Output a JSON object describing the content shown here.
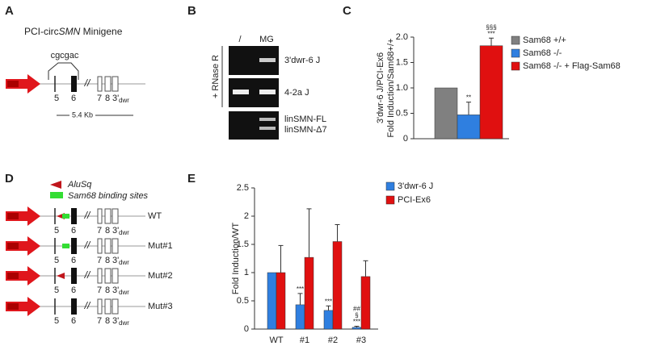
{
  "panel_labels": [
    "A",
    "B",
    "C",
    "D",
    "E"
  ],
  "minigene": {
    "title_pre": "PCI-circ",
    "title_italic": "SMN",
    "title_post": " Minigene",
    "motif": "cgcgac",
    "exons": [
      "5",
      "6",
      "7",
      "8"
    ],
    "dwr_prime": "3'",
    "dwr": "dwr",
    "length": "5.4 Kb"
  },
  "gel": {
    "side_label": "+ RNase R",
    "lanes": [
      "/",
      "MG"
    ],
    "bands": [
      "3'dwr-6 J",
      "4-2a J",
      "linSMN-FL",
      "linSMN-Δ7"
    ]
  },
  "mutants": {
    "legend": [
      "AluSq",
      "Sam68 binding sites"
    ],
    "rows": [
      "WT",
      "Mut#1",
      "Mut#2",
      "Mut#3"
    ]
  },
  "chart_data": [
    {
      "type": "bar",
      "ylabel": [
        "3'dwr-6 J/PCI-Ex6",
        "Fold Induction/Sam68+/+"
      ],
      "categories": [
        null
      ],
      "series": [
        {
          "name": "Sam68 +/+",
          "color": "#808080",
          "values": [
            1.0
          ]
        },
        {
          "name": "Sam68 -/-",
          "color": "#2f7fe0",
          "values": [
            0.47
          ],
          "errors": [
            0.25
          ],
          "significance": [
            [
              "**"
            ]
          ]
        },
        {
          "name": "Sam68 -/- + Flag-Sam68",
          "color": "#e01010",
          "values": [
            1.83
          ],
          "errors": [
            0.15
          ],
          "significance": [
            [
              "***",
              "§§§"
            ]
          ]
        }
      ],
      "ylim": [
        0,
        2
      ],
      "yticks": [
        0,
        0.5,
        {
          "value": 1,
          "label": "1.0"
        },
        1.5,
        {
          "value": 2,
          "label": "2.0"
        }
      ]
    },
    {
      "type": "bar",
      "ylabel": [
        "Fold Induction/WT"
      ],
      "categories": [
        "WT",
        "#1",
        "#2",
        "#3"
      ],
      "series": [
        {
          "name": "3'dwr-6 J",
          "color": "#2f7fe0",
          "values": [
            1.0,
            0.43,
            0.33,
            0.03
          ],
          "errors": [
            null,
            0.2,
            0.08,
            0.02
          ],
          "significance": [
            [],
            [
              "***"
            ],
            [
              "***"
            ],
            [
              "***",
              "§",
              "##"
            ]
          ]
        },
        {
          "name": "PCI-Ex6",
          "color": "#e01010",
          "values": [
            1.0,
            1.27,
            1.55,
            0.93
          ],
          "errors": [
            0.48,
            0.86,
            0.3,
            0.28
          ]
        }
      ],
      "ylim": [
        0,
        2.5
      ],
      "yticks": [
        0,
        0.5,
        1,
        1.5,
        2,
        2.5
      ]
    }
  ]
}
